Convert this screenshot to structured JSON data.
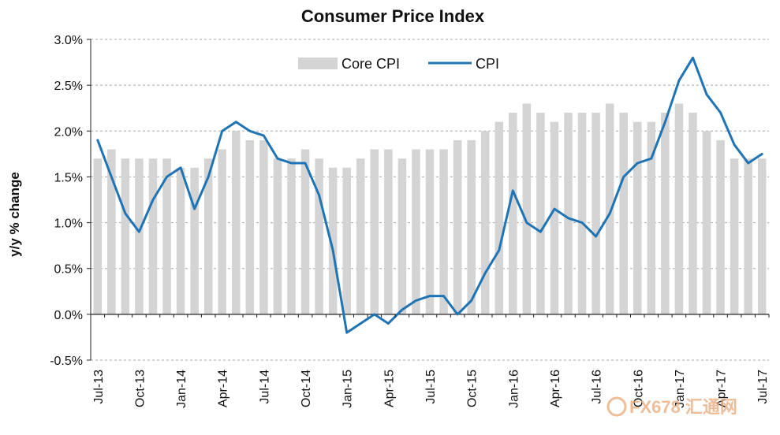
{
  "chart_data": {
    "type": "bar",
    "title": "Consumer  Price Index",
    "xlabel": "",
    "ylabel": "y/y % change",
    "ylim": [
      -0.5,
      3.0
    ],
    "yticks": [
      "-0.5%",
      "0.0%",
      "0.5%",
      "1.0%",
      "1.5%",
      "2.0%",
      "2.5%",
      "3.0%"
    ],
    "ytick_values": [
      -0.5,
      0.0,
      0.5,
      1.0,
      1.5,
      2.0,
      2.5,
      3.0
    ],
    "grid": true,
    "legend_position": "top-center",
    "categories": [
      "Jul-13",
      "Aug-13",
      "Sep-13",
      "Oct-13",
      "Nov-13",
      "Dec-13",
      "Jan-14",
      "Feb-14",
      "Mar-14",
      "Apr-14",
      "May-14",
      "Jun-14",
      "Jul-14",
      "Aug-14",
      "Sep-14",
      "Oct-14",
      "Nov-14",
      "Dec-14",
      "Jan-15",
      "Feb-15",
      "Mar-15",
      "Apr-15",
      "May-15",
      "Jun-15",
      "Jul-15",
      "Aug-15",
      "Sep-15",
      "Oct-15",
      "Nov-15",
      "Dec-15",
      "Jan-16",
      "Feb-16",
      "Mar-16",
      "Apr-16",
      "May-16",
      "Jun-16",
      "Jul-16",
      "Aug-16",
      "Sep-16",
      "Oct-16",
      "Nov-16",
      "Dec-16",
      "Jan-17",
      "Feb-17",
      "Mar-17",
      "Apr-17",
      "May-17",
      "Jun-17",
      "Jul-17"
    ],
    "x_tick_labels": [
      "Jul-13",
      "Oct-13",
      "Jan-14",
      "Apr-14",
      "Jul-14",
      "Oct-14",
      "Jan-15",
      "Apr-15",
      "Jul-15",
      "Oct-15",
      "Jan-16",
      "Apr-16",
      "Jul-16",
      "Oct-16",
      "Jan-17",
      "Apr-17",
      "Jul-17"
    ],
    "series": [
      {
        "name": "Core CPI",
        "type": "bar",
        "color": "#d4d4d4",
        "values": [
          1.7,
          1.8,
          1.7,
          1.7,
          1.7,
          1.7,
          1.6,
          1.6,
          1.7,
          1.8,
          2.0,
          1.9,
          1.9,
          1.7,
          1.7,
          1.8,
          1.7,
          1.6,
          1.6,
          1.7,
          1.8,
          1.8,
          1.7,
          1.8,
          1.8,
          1.8,
          1.9,
          1.9,
          2.0,
          2.1,
          2.2,
          2.3,
          2.2,
          2.1,
          2.2,
          2.2,
          2.2,
          2.3,
          2.2,
          2.1,
          2.1,
          2.2,
          2.3,
          2.2,
          2.0,
          1.9,
          1.7,
          1.7,
          1.7
        ]
      },
      {
        "name": "CPI",
        "type": "line",
        "color": "#1f74b5",
        "values": [
          1.9,
          1.5,
          1.1,
          0.9,
          1.25,
          1.5,
          1.6,
          1.15,
          1.5,
          2.0,
          2.1,
          2.0,
          1.95,
          1.7,
          1.65,
          1.65,
          1.3,
          0.7,
          -0.2,
          -0.1,
          0.0,
          -0.1,
          0.05,
          0.15,
          0.2,
          0.2,
          0.0,
          0.15,
          0.45,
          0.7,
          1.35,
          1.0,
          0.9,
          1.15,
          1.05,
          1.0,
          0.85,
          1.1,
          1.5,
          1.65,
          1.7,
          2.1,
          2.55,
          2.8,
          2.4,
          2.2,
          1.85,
          1.65,
          1.75
        ]
      }
    ]
  },
  "watermark": {
    "text": "FX678 汇通网"
  }
}
